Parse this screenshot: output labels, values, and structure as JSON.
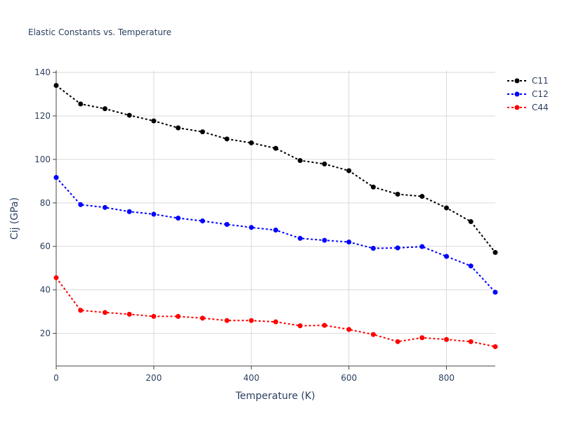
{
  "chart_data": {
    "type": "line",
    "title": "Elastic Constants vs. Temperature",
    "xlabel": "Temperature (K)",
    "ylabel": "Cij (GPa)",
    "xlim": [
      0,
      900
    ],
    "ylim": [
      5,
      141
    ],
    "xticks": [
      0,
      200,
      400,
      600,
      800
    ],
    "yticks": [
      20,
      40,
      60,
      80,
      100,
      120,
      140
    ],
    "grid": true,
    "legend_position": "top-right",
    "x": [
      0,
      50,
      100,
      150,
      200,
      250,
      300,
      350,
      400,
      450,
      500,
      550,
      600,
      650,
      700,
      750,
      800,
      850,
      900
    ],
    "series": [
      {
        "name": "C11",
        "color": "#000000",
        "values": [
          134.0,
          125.5,
          123.3,
          120.3,
          117.7,
          114.5,
          112.7,
          109.4,
          107.6,
          105.1,
          99.5,
          97.9,
          94.8,
          87.3,
          84.0,
          83.0,
          77.7,
          71.4,
          57.2
        ]
      },
      {
        "name": "C12",
        "color": "#0000ff",
        "values": [
          91.7,
          79.2,
          77.9,
          76.0,
          74.8,
          73.0,
          71.7,
          70.1,
          68.7,
          67.5,
          63.7,
          62.8,
          62.0,
          59.1,
          59.3,
          59.9,
          55.4,
          51.0,
          38.9
        ]
      },
      {
        "name": "C44",
        "color": "#ff0000",
        "values": [
          45.6,
          30.6,
          29.6,
          28.8,
          27.8,
          27.8,
          27.0,
          25.9,
          25.9,
          25.3,
          23.5,
          23.7,
          21.8,
          19.5,
          16.2,
          18.0,
          17.2,
          16.2,
          13.9
        ]
      }
    ]
  }
}
